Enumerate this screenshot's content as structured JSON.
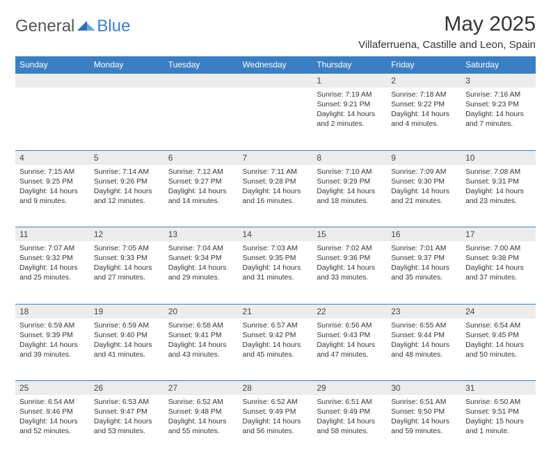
{
  "logo": {
    "general": "General",
    "blue": "Blue"
  },
  "title": "May 2025",
  "location": "Villaferruena, Castille and Leon, Spain",
  "colors": {
    "header_bg": "#3a7fc4",
    "header_text": "#ffffff",
    "daynum_bg": "#ececec",
    "border": "#3a7fc4",
    "text": "#333333"
  },
  "weekdays": [
    "Sunday",
    "Monday",
    "Tuesday",
    "Wednesday",
    "Thursday",
    "Friday",
    "Saturday"
  ],
  "weeks": [
    [
      null,
      null,
      null,
      null,
      {
        "n": "1",
        "sr": "Sunrise: 7:19 AM",
        "ss": "Sunset: 9:21 PM",
        "dl": "Daylight: 14 hours and 2 minutes."
      },
      {
        "n": "2",
        "sr": "Sunrise: 7:18 AM",
        "ss": "Sunset: 9:22 PM",
        "dl": "Daylight: 14 hours and 4 minutes."
      },
      {
        "n": "3",
        "sr": "Sunrise: 7:16 AM",
        "ss": "Sunset: 9:23 PM",
        "dl": "Daylight: 14 hours and 7 minutes."
      }
    ],
    [
      {
        "n": "4",
        "sr": "Sunrise: 7:15 AM",
        "ss": "Sunset: 9:25 PM",
        "dl": "Daylight: 14 hours and 9 minutes."
      },
      {
        "n": "5",
        "sr": "Sunrise: 7:14 AM",
        "ss": "Sunset: 9:26 PM",
        "dl": "Daylight: 14 hours and 12 minutes."
      },
      {
        "n": "6",
        "sr": "Sunrise: 7:12 AM",
        "ss": "Sunset: 9:27 PM",
        "dl": "Daylight: 14 hours and 14 minutes."
      },
      {
        "n": "7",
        "sr": "Sunrise: 7:11 AM",
        "ss": "Sunset: 9:28 PM",
        "dl": "Daylight: 14 hours and 16 minutes."
      },
      {
        "n": "8",
        "sr": "Sunrise: 7:10 AM",
        "ss": "Sunset: 9:29 PM",
        "dl": "Daylight: 14 hours and 18 minutes."
      },
      {
        "n": "9",
        "sr": "Sunrise: 7:09 AM",
        "ss": "Sunset: 9:30 PM",
        "dl": "Daylight: 14 hours and 21 minutes."
      },
      {
        "n": "10",
        "sr": "Sunrise: 7:08 AM",
        "ss": "Sunset: 9:31 PM",
        "dl": "Daylight: 14 hours and 23 minutes."
      }
    ],
    [
      {
        "n": "11",
        "sr": "Sunrise: 7:07 AM",
        "ss": "Sunset: 9:32 PM",
        "dl": "Daylight: 14 hours and 25 minutes."
      },
      {
        "n": "12",
        "sr": "Sunrise: 7:05 AM",
        "ss": "Sunset: 9:33 PM",
        "dl": "Daylight: 14 hours and 27 minutes."
      },
      {
        "n": "13",
        "sr": "Sunrise: 7:04 AM",
        "ss": "Sunset: 9:34 PM",
        "dl": "Daylight: 14 hours and 29 minutes."
      },
      {
        "n": "14",
        "sr": "Sunrise: 7:03 AM",
        "ss": "Sunset: 9:35 PM",
        "dl": "Daylight: 14 hours and 31 minutes."
      },
      {
        "n": "15",
        "sr": "Sunrise: 7:02 AM",
        "ss": "Sunset: 9:36 PM",
        "dl": "Daylight: 14 hours and 33 minutes."
      },
      {
        "n": "16",
        "sr": "Sunrise: 7:01 AM",
        "ss": "Sunset: 9:37 PM",
        "dl": "Daylight: 14 hours and 35 minutes."
      },
      {
        "n": "17",
        "sr": "Sunrise: 7:00 AM",
        "ss": "Sunset: 9:38 PM",
        "dl": "Daylight: 14 hours and 37 minutes."
      }
    ],
    [
      {
        "n": "18",
        "sr": "Sunrise: 6:59 AM",
        "ss": "Sunset: 9:39 PM",
        "dl": "Daylight: 14 hours and 39 minutes."
      },
      {
        "n": "19",
        "sr": "Sunrise: 6:59 AM",
        "ss": "Sunset: 9:40 PM",
        "dl": "Daylight: 14 hours and 41 minutes."
      },
      {
        "n": "20",
        "sr": "Sunrise: 6:58 AM",
        "ss": "Sunset: 9:41 PM",
        "dl": "Daylight: 14 hours and 43 minutes."
      },
      {
        "n": "21",
        "sr": "Sunrise: 6:57 AM",
        "ss": "Sunset: 9:42 PM",
        "dl": "Daylight: 14 hours and 45 minutes."
      },
      {
        "n": "22",
        "sr": "Sunrise: 6:56 AM",
        "ss": "Sunset: 9:43 PM",
        "dl": "Daylight: 14 hours and 47 minutes."
      },
      {
        "n": "23",
        "sr": "Sunrise: 6:55 AM",
        "ss": "Sunset: 9:44 PM",
        "dl": "Daylight: 14 hours and 48 minutes."
      },
      {
        "n": "24",
        "sr": "Sunrise: 6:54 AM",
        "ss": "Sunset: 9:45 PM",
        "dl": "Daylight: 14 hours and 50 minutes."
      }
    ],
    [
      {
        "n": "25",
        "sr": "Sunrise: 6:54 AM",
        "ss": "Sunset: 9:46 PM",
        "dl": "Daylight: 14 hours and 52 minutes."
      },
      {
        "n": "26",
        "sr": "Sunrise: 6:53 AM",
        "ss": "Sunset: 9:47 PM",
        "dl": "Daylight: 14 hours and 53 minutes."
      },
      {
        "n": "27",
        "sr": "Sunrise: 6:52 AM",
        "ss": "Sunset: 9:48 PM",
        "dl": "Daylight: 14 hours and 55 minutes."
      },
      {
        "n": "28",
        "sr": "Sunrise: 6:52 AM",
        "ss": "Sunset: 9:49 PM",
        "dl": "Daylight: 14 hours and 56 minutes."
      },
      {
        "n": "29",
        "sr": "Sunrise: 6:51 AM",
        "ss": "Sunset: 9:49 PM",
        "dl": "Daylight: 14 hours and 58 minutes."
      },
      {
        "n": "30",
        "sr": "Sunrise: 6:51 AM",
        "ss": "Sunset: 9:50 PM",
        "dl": "Daylight: 14 hours and 59 minutes."
      },
      {
        "n": "31",
        "sr": "Sunrise: 6:50 AM",
        "ss": "Sunset: 9:51 PM",
        "dl": "Daylight: 15 hours and 1 minute."
      }
    ]
  ]
}
